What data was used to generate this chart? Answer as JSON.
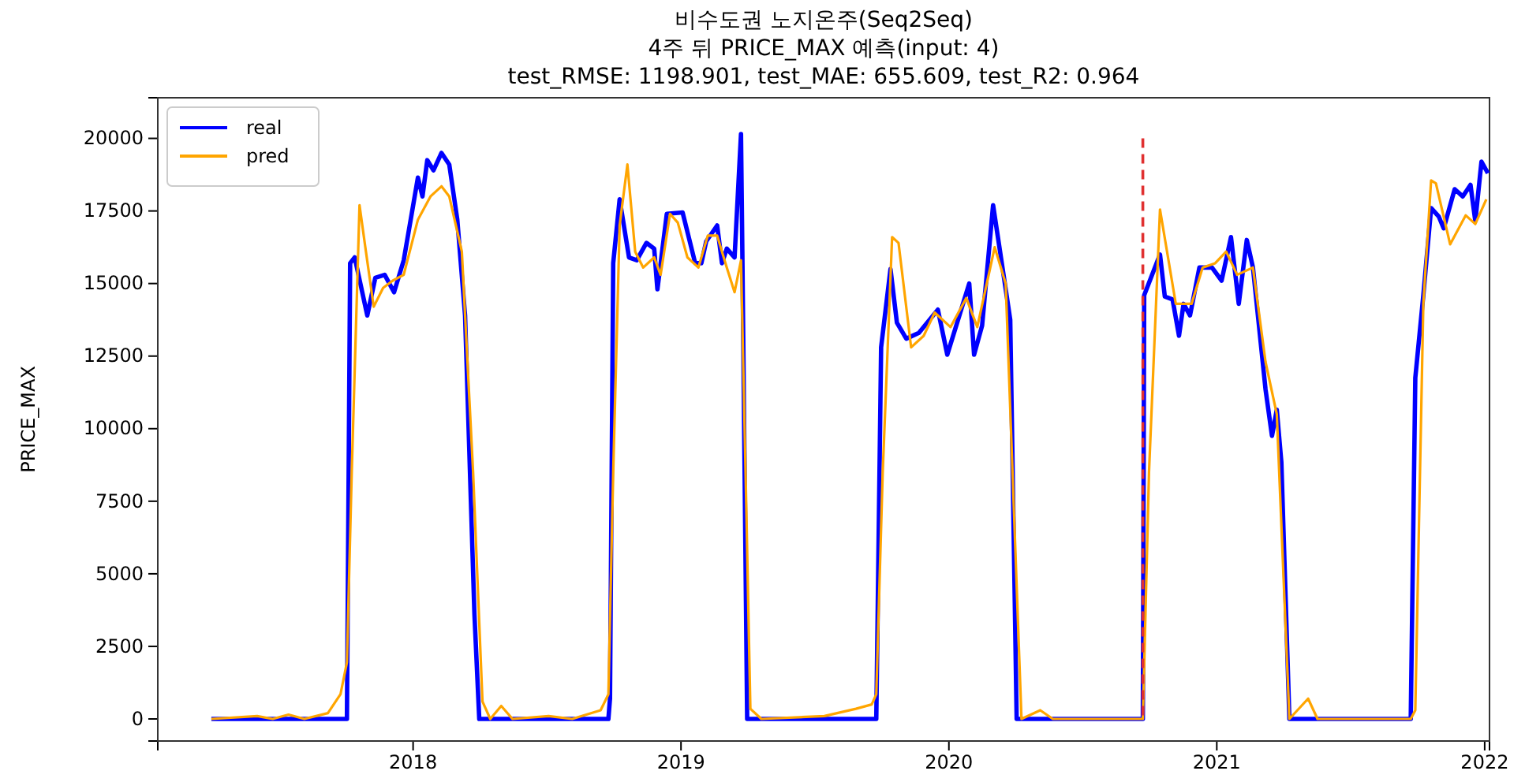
{
  "chart_data": {
    "type": "line",
    "title": "비수도권 노지온주(Seq2Seq)\n4주 뒤 PRICE_MAX 예측(input: 4)\ntest_RMSE: 1198.901, test_MAE: 655.609, test_R2: 0.964",
    "ylabel": "PRICE_MAX",
    "xlim": [
      2017.047,
      2022.018
    ],
    "xticks": [
      2018,
      2019,
      2020,
      2021,
      2022
    ],
    "ylim": [
      -760,
      21400
    ],
    "yticks": [
      0,
      2500,
      5000,
      7500,
      10000,
      12500,
      15000,
      17500,
      20000
    ],
    "grid": false,
    "legend": "top left",
    "line_style": "solid",
    "marker": "none",
    "ref_lines": [
      {
        "axis": "x",
        "value": 2020.724,
        "label": null,
        "color": "#e03030",
        "line_style": "dashed"
      }
    ],
    "series": [
      {
        "name": "real",
        "color": "#0000ff",
        "x": [
          2017.247,
          2017.753,
          2017.765,
          2017.782,
          2017.829,
          2017.859,
          2017.894,
          2017.929,
          2017.965,
          2018.018,
          2018.035,
          2018.053,
          2018.076,
          2018.106,
          2018.135,
          2018.165,
          2018.194,
          2018.229,
          2018.247,
          2018.729,
          2018.735,
          2018.747,
          2018.771,
          2018.806,
          2018.835,
          2018.871,
          2018.9,
          2018.912,
          2018.947,
          2019.006,
          2019.053,
          2019.076,
          2019.094,
          2019.135,
          2019.153,
          2019.171,
          2019.2,
          2019.224,
          2019.229,
          2019.247,
          2019.729,
          2019.747,
          2019.782,
          2019.806,
          2019.841,
          2019.888,
          2019.959,
          2019.994,
          2020.076,
          2020.094,
          2020.124,
          2020.165,
          2020.2,
          2020.229,
          2020.253,
          2020.724,
          2020.729,
          2020.788,
          2020.806,
          2020.835,
          2020.859,
          2020.876,
          2020.9,
          2020.935,
          2020.982,
          2021.018,
          2021.053,
          2021.082,
          2021.112,
          2021.135,
          2021.182,
          2021.206,
          2021.224,
          2021.241,
          2021.271,
          2021.724,
          2021.741,
          2021.771,
          2021.8,
          2021.829,
          2021.847,
          2021.888,
          2021.918,
          2021.947,
          2021.965,
          2021.988,
          2022.012
        ],
        "values": [
          0,
          0,
          15700,
          15900,
          13900,
          15200,
          15300,
          14700,
          15800,
          18650,
          18000,
          19250,
          18900,
          19500,
          19100,
          17200,
          13900,
          3600,
          0,
          0,
          700,
          15700,
          17900,
          15900,
          15800,
          16400,
          16200,
          14800,
          17400,
          17450,
          15700,
          15700,
          16450,
          17000,
          15700,
          16200,
          15900,
          20150,
          16100,
          0,
          0,
          12800,
          15500,
          13650,
          13100,
          13300,
          14100,
          12550,
          15000,
          12550,
          13550,
          17700,
          15550,
          13750,
          0,
          0,
          14600,
          16000,
          14550,
          14450,
          13200,
          14300,
          13900,
          15550,
          15550,
          15100,
          16600,
          14300,
          16500,
          15550,
          11350,
          9750,
          10650,
          8850,
          0,
          0,
          11750,
          14600,
          17600,
          17300,
          16900,
          18250,
          18000,
          18400,
          17150,
          19200,
          18800
        ]
      },
      {
        "name": "pred",
        "color": "#ffa500",
        "x": [
          2017.247,
          2017.418,
          2017.476,
          2017.535,
          2017.594,
          2017.682,
          2017.729,
          2017.753,
          2017.771,
          2017.8,
          2017.824,
          2017.853,
          2017.888,
          2017.924,
          2017.965,
          2018.018,
          2018.065,
          2018.106,
          2018.135,
          2018.182,
          2018.224,
          2018.259,
          2018.288,
          2018.329,
          2018.371,
          2018.506,
          2018.594,
          2018.7,
          2018.729,
          2018.747,
          2018.771,
          2018.8,
          2018.829,
          2018.859,
          2018.9,
          2018.924,
          2018.959,
          2018.988,
          2019.024,
          2019.065,
          2019.1,
          2019.135,
          2019.171,
          2019.2,
          2019.224,
          2019.241,
          2019.259,
          2019.3,
          2019.535,
          2019.653,
          2019.712,
          2019.729,
          2019.753,
          2019.788,
          2019.812,
          2019.859,
          2019.906,
          2019.947,
          2020.006,
          2020.065,
          2020.106,
          2020.171,
          2020.212,
          2020.271,
          2020.341,
          2020.388,
          2020.724,
          2020.747,
          2020.788,
          2020.847,
          2020.906,
          2020.947,
          2020.994,
          2021.035,
          2021.076,
          2021.135,
          2021.182,
          2021.224,
          2021.271,
          2021.341,
          2021.376,
          2021.724,
          2021.741,
          2021.771,
          2021.8,
          2021.818,
          2021.871,
          2021.929,
          2021.965,
          2022.006
        ],
        "values": [
          0,
          100,
          0,
          150,
          0,
          200,
          850,
          1950,
          8500,
          17700,
          16100,
          14200,
          14850,
          15100,
          15300,
          17200,
          18000,
          18350,
          18000,
          16100,
          8500,
          600,
          0,
          450,
          0,
          100,
          0,
          300,
          850,
          8500,
          17000,
          19100,
          16100,
          15550,
          15900,
          15300,
          17400,
          17100,
          15900,
          15550,
          16650,
          16650,
          15550,
          14700,
          15800,
          8500,
          350,
          0,
          100,
          350,
          500,
          850,
          8500,
          16600,
          16400,
          12800,
          13200,
          14000,
          13500,
          14500,
          13500,
          16250,
          15000,
          0,
          300,
          0,
          0,
          8500,
          17550,
          14300,
          14300,
          15550,
          15700,
          16100,
          15300,
          15550,
          12300,
          10500,
          0,
          700,
          0,
          0,
          300,
          14300,
          18550,
          18450,
          16350,
          17350,
          17050,
          17900
        ]
      }
    ]
  }
}
